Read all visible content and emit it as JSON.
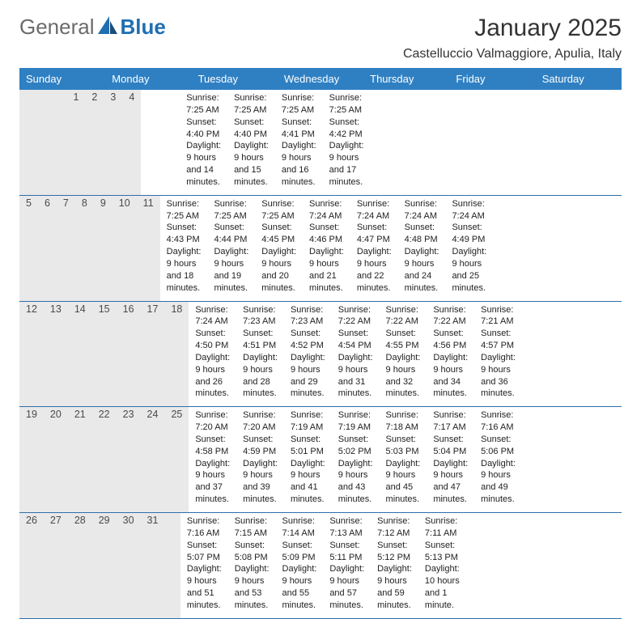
{
  "brand": {
    "part1": "General",
    "part2": "Blue"
  },
  "title": "January 2025",
  "subtitle": "Castelluccio Valmaggiore, Apulia, Italy",
  "colors": {
    "header_bg": "#2f80c3",
    "header_text": "#ffffff",
    "daynum_bg": "#e9e9e9",
    "week_divider": "#2f6fa8",
    "body_text": "#222222",
    "title_text": "#333333",
    "logo_grey": "#6b6b6b",
    "logo_blue": "#1f6fb2"
  },
  "typography": {
    "title_fontsize": 30,
    "subtitle_fontsize": 16,
    "header_fontsize": 13,
    "daynum_fontsize": 12.5,
    "detail_fontsize": 11
  },
  "day_headers": [
    "Sunday",
    "Monday",
    "Tuesday",
    "Wednesday",
    "Thursday",
    "Friday",
    "Saturday"
  ],
  "weeks": [
    [
      null,
      null,
      null,
      {
        "n": "1",
        "sr": "Sunrise: 7:25 AM",
        "ss": "Sunset: 4:40 PM",
        "d1": "Daylight: 9 hours",
        "d2": "and 14 minutes."
      },
      {
        "n": "2",
        "sr": "Sunrise: 7:25 AM",
        "ss": "Sunset: 4:40 PM",
        "d1": "Daylight: 9 hours",
        "d2": "and 15 minutes."
      },
      {
        "n": "3",
        "sr": "Sunrise: 7:25 AM",
        "ss": "Sunset: 4:41 PM",
        "d1": "Daylight: 9 hours",
        "d2": "and 16 minutes."
      },
      {
        "n": "4",
        "sr": "Sunrise: 7:25 AM",
        "ss": "Sunset: 4:42 PM",
        "d1": "Daylight: 9 hours",
        "d2": "and 17 minutes."
      }
    ],
    [
      {
        "n": "5",
        "sr": "Sunrise: 7:25 AM",
        "ss": "Sunset: 4:43 PM",
        "d1": "Daylight: 9 hours",
        "d2": "and 18 minutes."
      },
      {
        "n": "6",
        "sr": "Sunrise: 7:25 AM",
        "ss": "Sunset: 4:44 PM",
        "d1": "Daylight: 9 hours",
        "d2": "and 19 minutes."
      },
      {
        "n": "7",
        "sr": "Sunrise: 7:25 AM",
        "ss": "Sunset: 4:45 PM",
        "d1": "Daylight: 9 hours",
        "d2": "and 20 minutes."
      },
      {
        "n": "8",
        "sr": "Sunrise: 7:24 AM",
        "ss": "Sunset: 4:46 PM",
        "d1": "Daylight: 9 hours",
        "d2": "and 21 minutes."
      },
      {
        "n": "9",
        "sr": "Sunrise: 7:24 AM",
        "ss": "Sunset: 4:47 PM",
        "d1": "Daylight: 9 hours",
        "d2": "and 22 minutes."
      },
      {
        "n": "10",
        "sr": "Sunrise: 7:24 AM",
        "ss": "Sunset: 4:48 PM",
        "d1": "Daylight: 9 hours",
        "d2": "and 24 minutes."
      },
      {
        "n": "11",
        "sr": "Sunrise: 7:24 AM",
        "ss": "Sunset: 4:49 PM",
        "d1": "Daylight: 9 hours",
        "d2": "and 25 minutes."
      }
    ],
    [
      {
        "n": "12",
        "sr": "Sunrise: 7:24 AM",
        "ss": "Sunset: 4:50 PM",
        "d1": "Daylight: 9 hours",
        "d2": "and 26 minutes."
      },
      {
        "n": "13",
        "sr": "Sunrise: 7:23 AM",
        "ss": "Sunset: 4:51 PM",
        "d1": "Daylight: 9 hours",
        "d2": "and 28 minutes."
      },
      {
        "n": "14",
        "sr": "Sunrise: 7:23 AM",
        "ss": "Sunset: 4:52 PM",
        "d1": "Daylight: 9 hours",
        "d2": "and 29 minutes."
      },
      {
        "n": "15",
        "sr": "Sunrise: 7:22 AM",
        "ss": "Sunset: 4:54 PM",
        "d1": "Daylight: 9 hours",
        "d2": "and 31 minutes."
      },
      {
        "n": "16",
        "sr": "Sunrise: 7:22 AM",
        "ss": "Sunset: 4:55 PM",
        "d1": "Daylight: 9 hours",
        "d2": "and 32 minutes."
      },
      {
        "n": "17",
        "sr": "Sunrise: 7:22 AM",
        "ss": "Sunset: 4:56 PM",
        "d1": "Daylight: 9 hours",
        "d2": "and 34 minutes."
      },
      {
        "n": "18",
        "sr": "Sunrise: 7:21 AM",
        "ss": "Sunset: 4:57 PM",
        "d1": "Daylight: 9 hours",
        "d2": "and 36 minutes."
      }
    ],
    [
      {
        "n": "19",
        "sr": "Sunrise: 7:20 AM",
        "ss": "Sunset: 4:58 PM",
        "d1": "Daylight: 9 hours",
        "d2": "and 37 minutes."
      },
      {
        "n": "20",
        "sr": "Sunrise: 7:20 AM",
        "ss": "Sunset: 4:59 PM",
        "d1": "Daylight: 9 hours",
        "d2": "and 39 minutes."
      },
      {
        "n": "21",
        "sr": "Sunrise: 7:19 AM",
        "ss": "Sunset: 5:01 PM",
        "d1": "Daylight: 9 hours",
        "d2": "and 41 minutes."
      },
      {
        "n": "22",
        "sr": "Sunrise: 7:19 AM",
        "ss": "Sunset: 5:02 PM",
        "d1": "Daylight: 9 hours",
        "d2": "and 43 minutes."
      },
      {
        "n": "23",
        "sr": "Sunrise: 7:18 AM",
        "ss": "Sunset: 5:03 PM",
        "d1": "Daylight: 9 hours",
        "d2": "and 45 minutes."
      },
      {
        "n": "24",
        "sr": "Sunrise: 7:17 AM",
        "ss": "Sunset: 5:04 PM",
        "d1": "Daylight: 9 hours",
        "d2": "and 47 minutes."
      },
      {
        "n": "25",
        "sr": "Sunrise: 7:16 AM",
        "ss": "Sunset: 5:06 PM",
        "d1": "Daylight: 9 hours",
        "d2": "and 49 minutes."
      }
    ],
    [
      {
        "n": "26",
        "sr": "Sunrise: 7:16 AM",
        "ss": "Sunset: 5:07 PM",
        "d1": "Daylight: 9 hours",
        "d2": "and 51 minutes."
      },
      {
        "n": "27",
        "sr": "Sunrise: 7:15 AM",
        "ss": "Sunset: 5:08 PM",
        "d1": "Daylight: 9 hours",
        "d2": "and 53 minutes."
      },
      {
        "n": "28",
        "sr": "Sunrise: 7:14 AM",
        "ss": "Sunset: 5:09 PM",
        "d1": "Daylight: 9 hours",
        "d2": "and 55 minutes."
      },
      {
        "n": "29",
        "sr": "Sunrise: 7:13 AM",
        "ss": "Sunset: 5:11 PM",
        "d1": "Daylight: 9 hours",
        "d2": "and 57 minutes."
      },
      {
        "n": "30",
        "sr": "Sunrise: 7:12 AM",
        "ss": "Sunset: 5:12 PM",
        "d1": "Daylight: 9 hours",
        "d2": "and 59 minutes."
      },
      {
        "n": "31",
        "sr": "Sunrise: 7:11 AM",
        "ss": "Sunset: 5:13 PM",
        "d1": "Daylight: 10 hours",
        "d2": "and 1 minute."
      },
      null
    ]
  ]
}
